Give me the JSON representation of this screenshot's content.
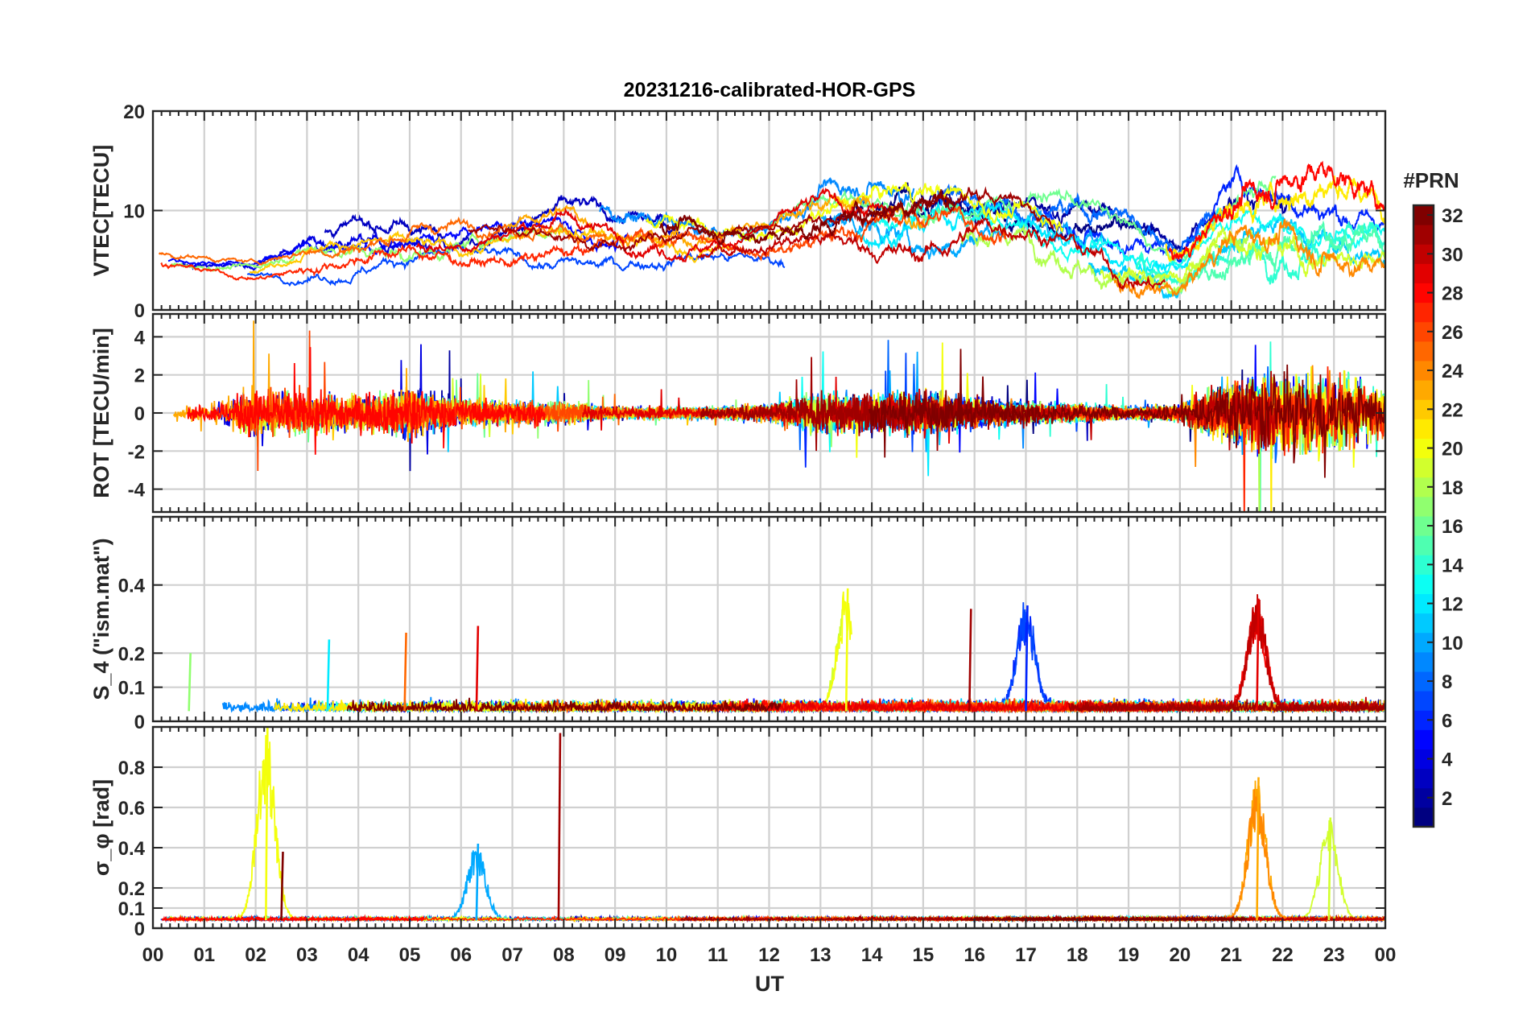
{
  "chart_data": {
    "type": "line",
    "title": "20231216-calibrated-HOR-GPS",
    "xlabel": "UT",
    "x_ticks": [
      "00",
      "01",
      "02",
      "03",
      "04",
      "05",
      "06",
      "07",
      "08",
      "09",
      "10",
      "11",
      "12",
      "13",
      "14",
      "15",
      "16",
      "17",
      "18",
      "19",
      "20",
      "21",
      "22",
      "23",
      "00"
    ],
    "x_range_hours": [
      0,
      24
    ],
    "colorbar": {
      "title": "#PRN",
      "range": [
        1,
        32
      ],
      "ticks": [
        "2",
        "4",
        "6",
        "8",
        "10",
        "12",
        "14",
        "16",
        "18",
        "20",
        "22",
        "24",
        "26",
        "28",
        "30",
        "32"
      ],
      "colormap": "jet"
    },
    "panels": [
      {
        "id": "vtec",
        "ylabel": "VTEC[TECU]",
        "ylim": [
          0,
          20
        ],
        "yticks": [
          "0",
          "10",
          "20"
        ],
        "yticks_values": [
          0,
          10,
          20
        ],
        "grid_values": [
          0,
          10,
          20
        ],
        "series_note": "One trace per GPS PRN, colored by PRN number",
        "envelope": {
          "hours": [
            0,
            1,
            2,
            3,
            4,
            5,
            6,
            7,
            8,
            9,
            10,
            11,
            12,
            13,
            14,
            15,
            16,
            17,
            18,
            19,
            20,
            21,
            22,
            23,
            24
          ],
          "mean": [
            5,
            4.5,
            4,
            5.5,
            6,
            6.5,
            6.5,
            7,
            7.5,
            6.5,
            6.5,
            6.5,
            7,
            8.5,
            9,
            8.5,
            9,
            9,
            8,
            6,
            4,
            9.5,
            10,
            9.5,
            8
          ],
          "spread": [
            1,
            0.8,
            0.8,
            1.6,
            2,
            2.2,
            2,
            2,
            2.4,
            2.4,
            2.6,
            2,
            2,
            2.8,
            3,
            3.6,
            3.4,
            3,
            3,
            3,
            2.2,
            3.6,
            4,
            3.8,
            2.6
          ]
        }
      },
      {
        "id": "rot",
        "ylabel": "ROT [TECU/min]",
        "ylim": [
          -5.2,
          5.2
        ],
        "yticks": [
          "-4",
          "-2",
          "0",
          "2",
          "4"
        ],
        "yticks_values": [
          -4,
          -2,
          0,
          2,
          4
        ],
        "grid_values": [
          -4,
          -2,
          0,
          2,
          4
        ],
        "series_note": "Rate of TEC per PRN; disturbed after 21 UT",
        "envelope": {
          "hours": [
            0,
            1,
            2,
            3,
            4,
            5,
            6,
            7,
            8,
            9,
            10,
            11,
            12,
            13,
            14,
            15,
            16,
            17,
            18,
            19,
            20,
            21,
            22,
            23,
            24
          ],
          "amplitude": [
            0.6,
            0.5,
            1.6,
            1.4,
            1.2,
            1.6,
            0.9,
            0.7,
            0.7,
            0.4,
            0.4,
            0.4,
            0.6,
            1.3,
            1.2,
            1.3,
            1,
            0.7,
            0.6,
            0.4,
            0.6,
            2.2,
            2.6,
            2.4,
            1.5
          ]
        }
      },
      {
        "id": "s4",
        "ylabel": "S_4 (\"ism.mat\")",
        "ylim": [
          0,
          0.6
        ],
        "yticks": [
          "0",
          "0.1",
          "0.2",
          "0.4"
        ],
        "yticks_values": [
          0,
          0.1,
          0.2,
          0.4
        ],
        "grid_values": [
          0,
          0.1,
          0.2,
          0.4,
          0.6
        ],
        "series_note": "Amplitude scintillation index per PRN",
        "peaks": [
          {
            "hour": 0.7,
            "value": 0.2,
            "prn": 17
          },
          {
            "hour": 3.4,
            "value": 0.24,
            "prn": 12
          },
          {
            "hour": 4.9,
            "value": 0.26,
            "prn": 25
          },
          {
            "hour": 6.3,
            "value": 0.28,
            "prn": 29
          },
          {
            "hour": 13.5,
            "value": 0.39,
            "prn": 20
          },
          {
            "hour": 15.9,
            "value": 0.33,
            "prn": 31
          },
          {
            "hour": 17.0,
            "value": 0.34,
            "prn": 6
          },
          {
            "hour": 21.5,
            "value": 0.36,
            "prn": 29
          }
        ]
      },
      {
        "id": "sigma_phi",
        "ylabel": "σ_φ [rad]",
        "ylim": [
          0,
          1
        ],
        "yticks": [
          "0",
          "0.1",
          "0.2",
          "0.4",
          "0.6",
          "0.8"
        ],
        "yticks_values": [
          0,
          0.1,
          0.2,
          0.4,
          0.6,
          0.8
        ],
        "grid_values": [
          0,
          0.1,
          0.2,
          0.4,
          0.6,
          0.8,
          1
        ],
        "series_note": "Phase scintillation index per PRN",
        "peaks": [
          {
            "hour": 2.2,
            "value": 1.0,
            "prn": 20
          },
          {
            "hour": 2.5,
            "value": 0.38,
            "prn": 32
          },
          {
            "hour": 6.3,
            "value": 0.42,
            "prn": 10
          },
          {
            "hour": 7.9,
            "value": 0.97,
            "prn": 31
          },
          {
            "hour": 21.5,
            "value": 0.75,
            "prn": 23
          },
          {
            "hour": 22.9,
            "value": 0.55,
            "prn": 19
          }
        ]
      }
    ]
  }
}
